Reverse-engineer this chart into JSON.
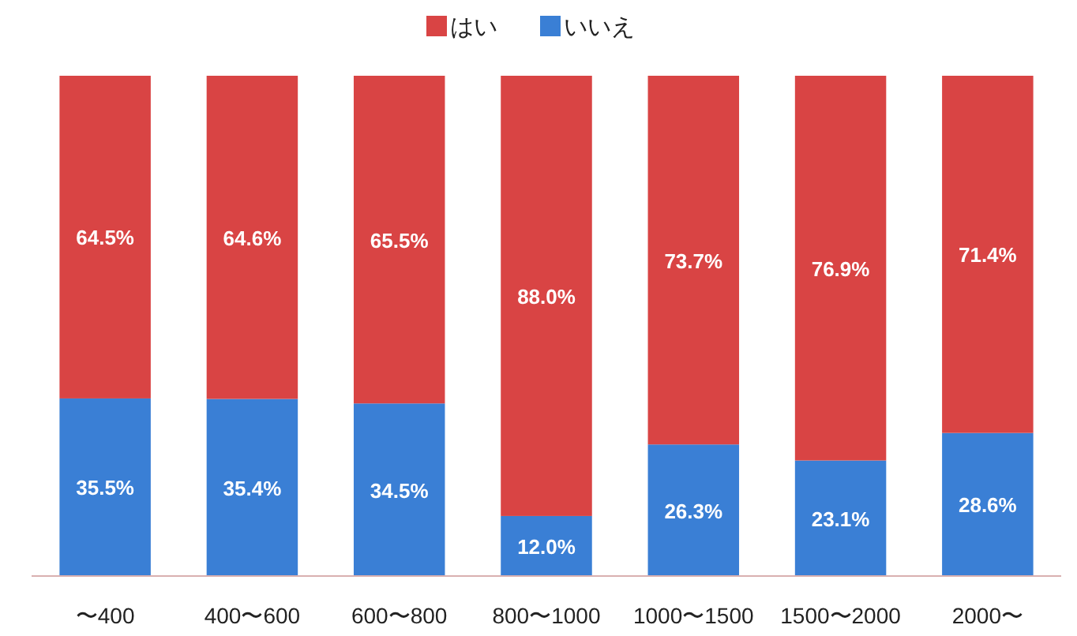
{
  "chart_data": {
    "type": "bar",
    "stacked": true,
    "legend": "top",
    "grid": false,
    "categories": [
      "〜400",
      "400〜600",
      "600〜800",
      "800〜1000",
      "1000〜1500",
      "1500〜2000",
      "2000〜"
    ],
    "series": [
      {
        "name": "いいえ",
        "color": "#3a7fd5",
        "values": [
          35.5,
          35.4,
          34.5,
          12.0,
          26.3,
          23.1,
          28.6
        ],
        "value_labels": [
          "35.5%",
          "35.4%",
          "34.5%",
          "12.0%",
          "26.3%",
          "23.1%",
          "28.6%"
        ]
      },
      {
        "name": "はい",
        "color": "#d94444",
        "values": [
          64.5,
          64.6,
          65.5,
          88.0,
          73.7,
          76.9,
          71.4
        ],
        "value_labels": [
          "64.5%",
          "64.6%",
          "65.5%",
          "88.0%",
          "73.7%",
          "76.9%",
          "71.4%"
        ]
      }
    ]
  }
}
